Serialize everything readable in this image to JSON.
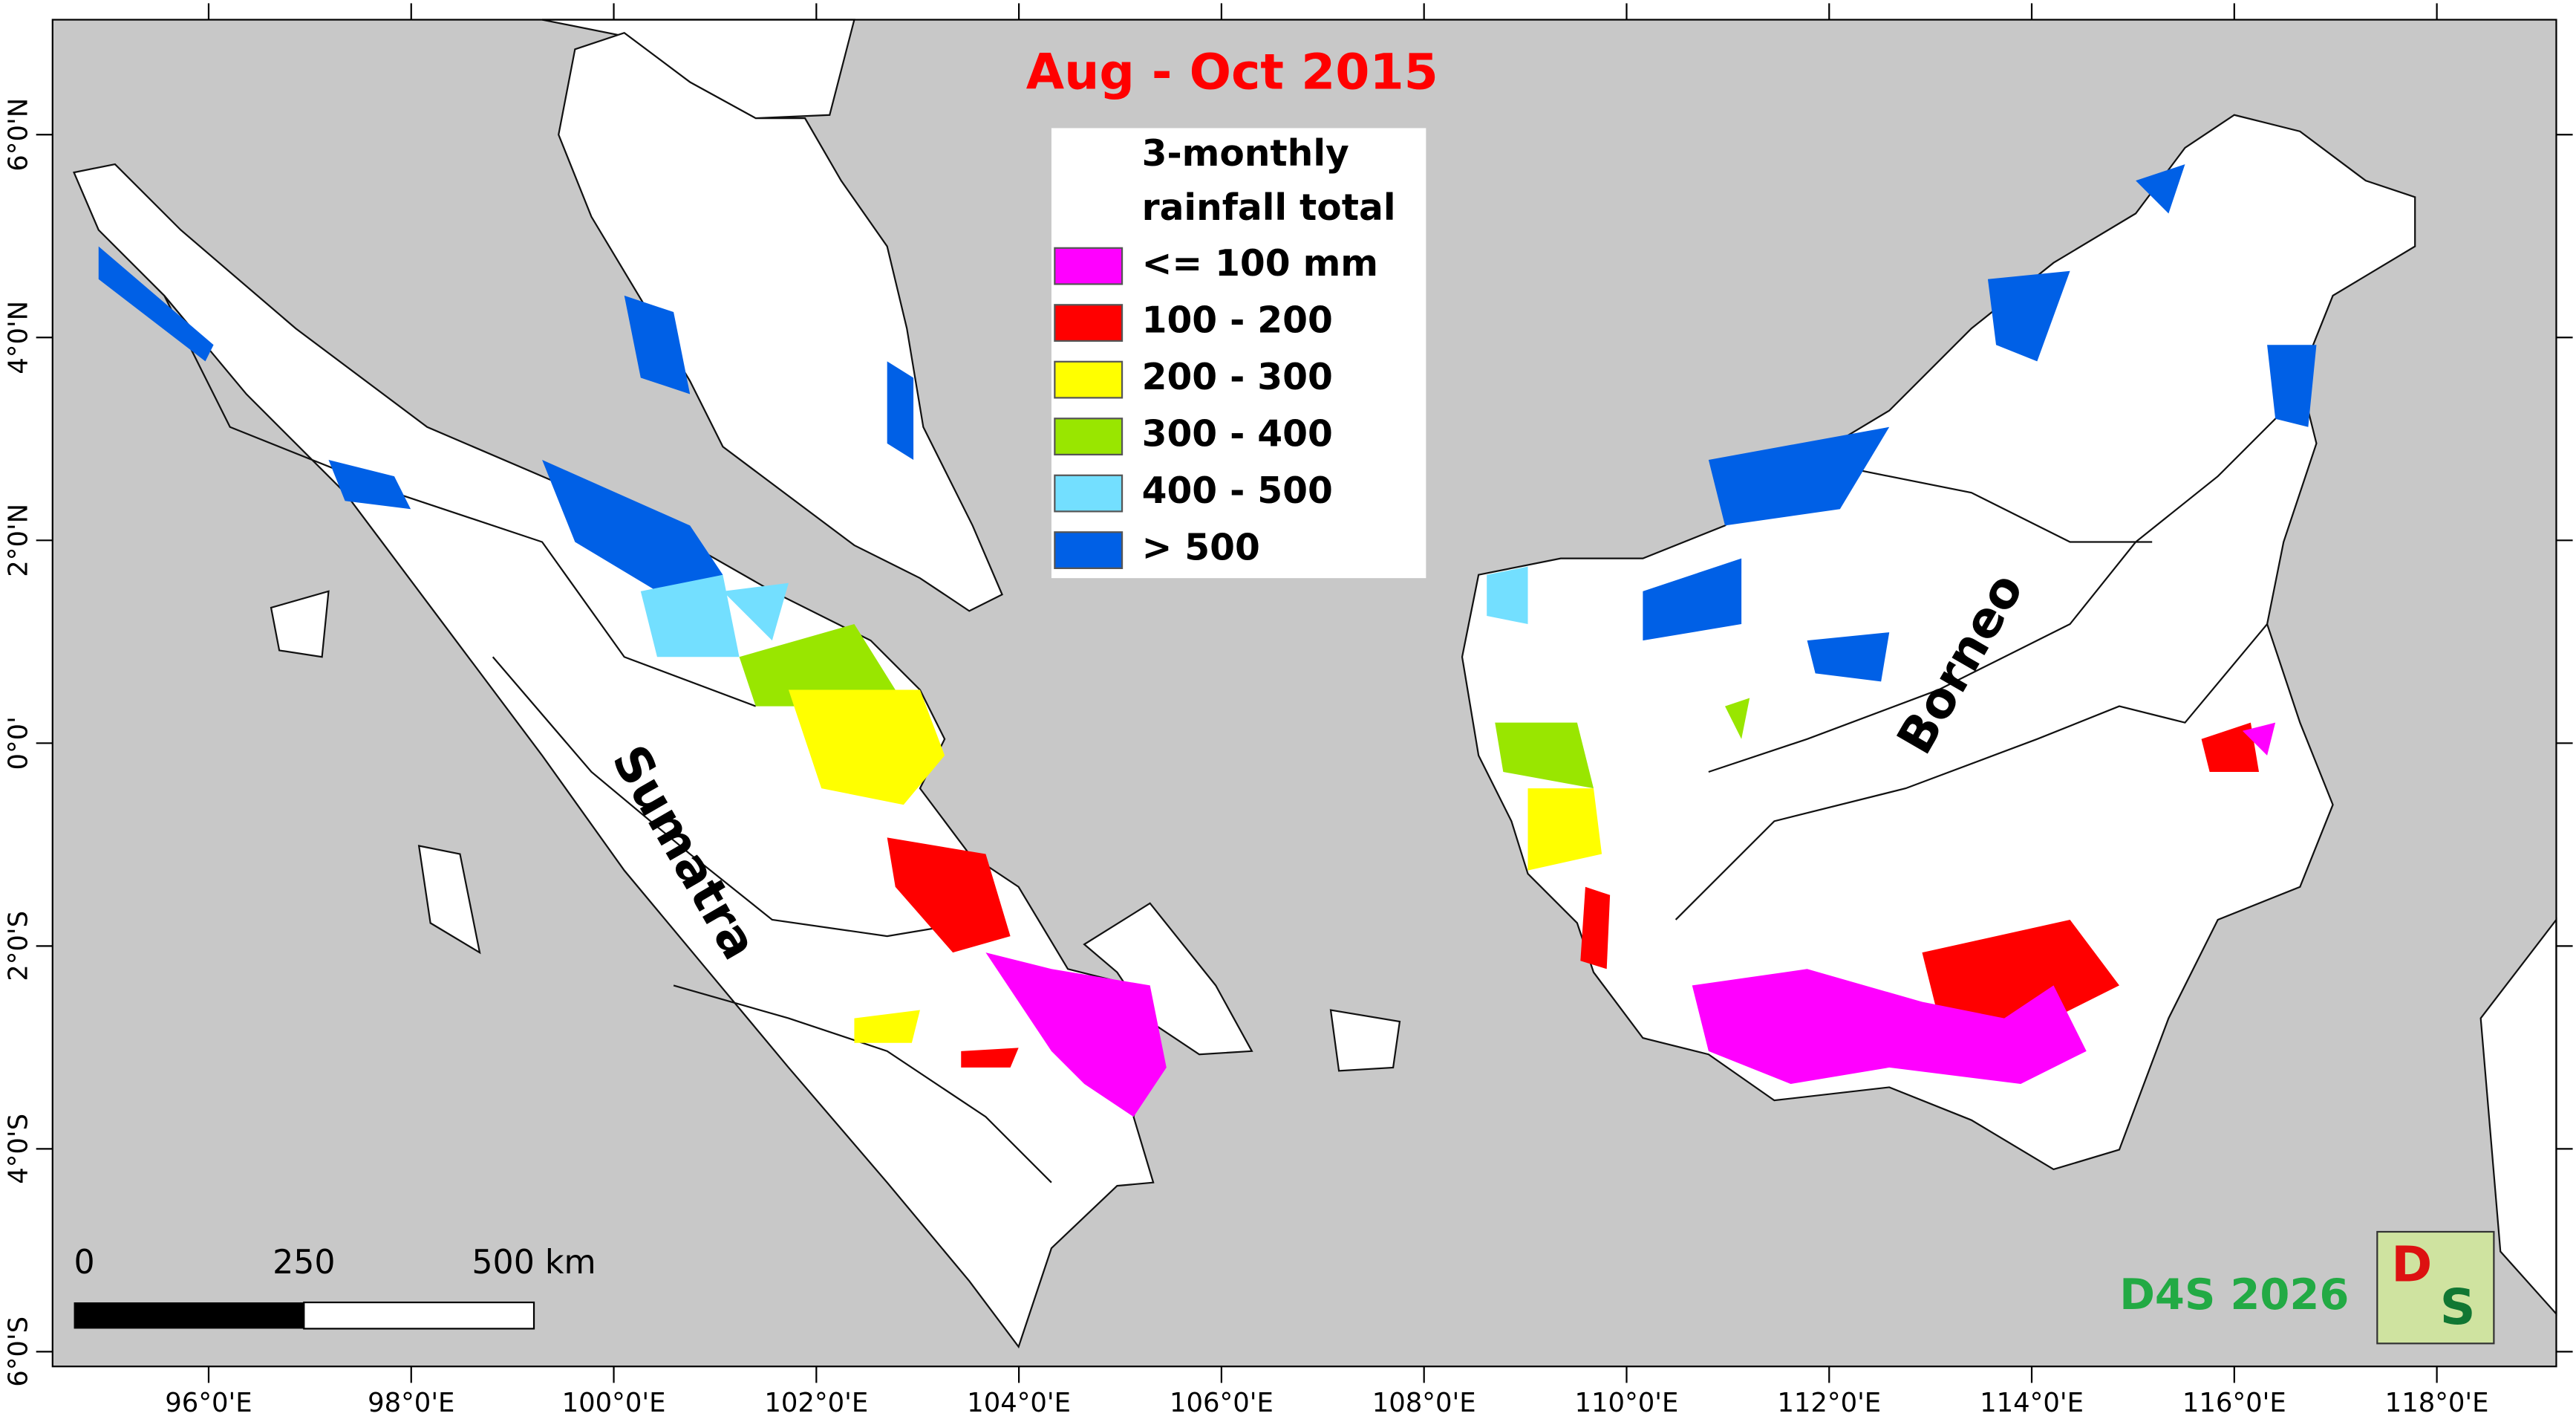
{
  "title": "Aug - Oct 2015",
  "legend": {
    "title_lines": [
      "3-monthly",
      "rainfall total"
    ],
    "items": [
      {
        "label": "<= 100 mm",
        "color": "#ff00ff"
      },
      {
        "label": "100 - 200",
        "color": "#ff0000"
      },
      {
        "label": "200 - 300",
        "color": "#ffff00"
      },
      {
        "label": "300 - 400",
        "color": "#99e600"
      },
      {
        "label": "400 - 500",
        "color": "#73dfff"
      },
      {
        "label": "> 500",
        "color": "#0060e6"
      }
    ]
  },
  "axes": {
    "x_labels": [
      "96°0'E",
      "98°0'E",
      "100°0'E",
      "102°0'E",
      "104°0'E",
      "106°0'E",
      "108°0'E",
      "110°0'E",
      "112°0'E",
      "114°0'E",
      "116°0'E",
      "118°0'E"
    ],
    "y_labels": [
      "6°0'N",
      "4°0'N",
      "2°0'N",
      "0°0'",
      "2°0'S",
      "4°0'S",
      "6°0'S"
    ]
  },
  "scale_bar": {
    "labels": [
      "0",
      "250",
      "500 km"
    ]
  },
  "places": [
    "Sumatra",
    "Borneo"
  ],
  "credit": "D4S 2026",
  "logo": [
    "D",
    "S"
  ]
}
